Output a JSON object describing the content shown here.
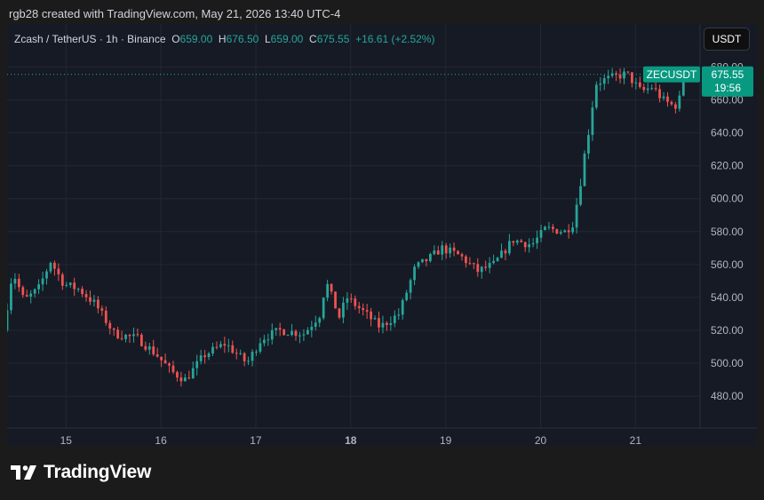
{
  "caption": "rgb28 created with TradingView.com, May 21, 2026 13:40 UTC-4",
  "legend": {
    "title": "Zcash / TetherUS · 1h · Binance",
    "open_label": "O",
    "open": "659.00",
    "high_label": "H",
    "high": "676.50",
    "low_label": "L",
    "low": "659.00",
    "close_label": "C",
    "close": "675.55",
    "change": "+16.61 (+2.52%)"
  },
  "currency_button": "USDT",
  "brand": {
    "name": "TradingView",
    "logo_icon": "tradingview-logo-icon"
  },
  "colors": {
    "up": "#26a69a",
    "down": "#ef5350",
    "background": "#161a25",
    "grid": "#232733",
    "text": "#b2b5be",
    "badge": "#089981"
  },
  "chart_data": {
    "type": "candlestick",
    "symbol": "ZCASH/USDT",
    "interval": "1h",
    "y_axis": {
      "range": [
        466,
        690
      ],
      "ticks": [
        480,
        500,
        520,
        540,
        560,
        580,
        600,
        620,
        640,
        660,
        680
      ],
      "tick_labels": [
        "480.00",
        "500.00",
        "520.00",
        "540.00",
        "560.00",
        "580.00",
        "600.00",
        "620.00",
        "640.00",
        "660.00",
        "680.00"
      ]
    },
    "x_axis": {
      "range_days": [
        14.38,
        21.68
      ],
      "ticks": [
        15,
        16,
        17,
        18,
        19,
        20,
        21
      ],
      "tick_labels": [
        "15",
        "16",
        "17",
        "18",
        "19",
        "20",
        "21"
      ],
      "bold_tick": "18"
    },
    "last_price": {
      "symbol": "ZECUSDT",
      "value": 675.55,
      "value_label": "675.55",
      "countdown": "19:56"
    },
    "grid": true,
    "anchors": [
      {
        "d": 14.38,
        "p": 520
      },
      {
        "d": 14.48,
        "p": 556
      },
      {
        "d": 14.6,
        "p": 538
      },
      {
        "d": 14.75,
        "p": 545
      },
      {
        "d": 14.88,
        "p": 562
      },
      {
        "d": 15.02,
        "p": 548
      },
      {
        "d": 15.18,
        "p": 545
      },
      {
        "d": 15.35,
        "p": 536
      },
      {
        "d": 15.55,
        "p": 518
      },
      {
        "d": 15.8,
        "p": 515
      },
      {
        "d": 16.0,
        "p": 505
      },
      {
        "d": 16.15,
        "p": 495
      },
      {
        "d": 16.3,
        "p": 490
      },
      {
        "d": 16.5,
        "p": 505
      },
      {
        "d": 16.72,
        "p": 512
      },
      {
        "d": 16.95,
        "p": 500
      },
      {
        "d": 17.1,
        "p": 515
      },
      {
        "d": 17.3,
        "p": 520
      },
      {
        "d": 17.55,
        "p": 518
      },
      {
        "d": 17.72,
        "p": 530
      },
      {
        "d": 17.78,
        "p": 550
      },
      {
        "d": 17.92,
        "p": 528
      },
      {
        "d": 18.0,
        "p": 540
      },
      {
        "d": 18.2,
        "p": 530
      },
      {
        "d": 18.35,
        "p": 522
      },
      {
        "d": 18.55,
        "p": 530
      },
      {
        "d": 18.72,
        "p": 558
      },
      {
        "d": 18.9,
        "p": 565
      },
      {
        "d": 19.0,
        "p": 570
      },
      {
        "d": 19.2,
        "p": 565
      },
      {
        "d": 19.38,
        "p": 556
      },
      {
        "d": 19.55,
        "p": 560
      },
      {
        "d": 19.75,
        "p": 575
      },
      {
        "d": 19.95,
        "p": 572
      },
      {
        "d": 20.1,
        "p": 582
      },
      {
        "d": 20.3,
        "p": 580
      },
      {
        "d": 20.38,
        "p": 585
      },
      {
        "d": 20.45,
        "p": 605
      },
      {
        "d": 20.5,
        "p": 625
      },
      {
        "d": 20.56,
        "p": 645
      },
      {
        "d": 20.62,
        "p": 670
      },
      {
        "d": 20.7,
        "p": 672
      },
      {
        "d": 20.82,
        "p": 674
      },
      {
        "d": 20.95,
        "p": 676
      },
      {
        "d": 21.1,
        "p": 665
      },
      {
        "d": 21.22,
        "p": 668
      },
      {
        "d": 21.33,
        "p": 660
      },
      {
        "d": 21.45,
        "p": 656
      },
      {
        "d": 21.5,
        "p": 659
      },
      {
        "d": 21.55,
        "p": 675.55
      }
    ]
  }
}
